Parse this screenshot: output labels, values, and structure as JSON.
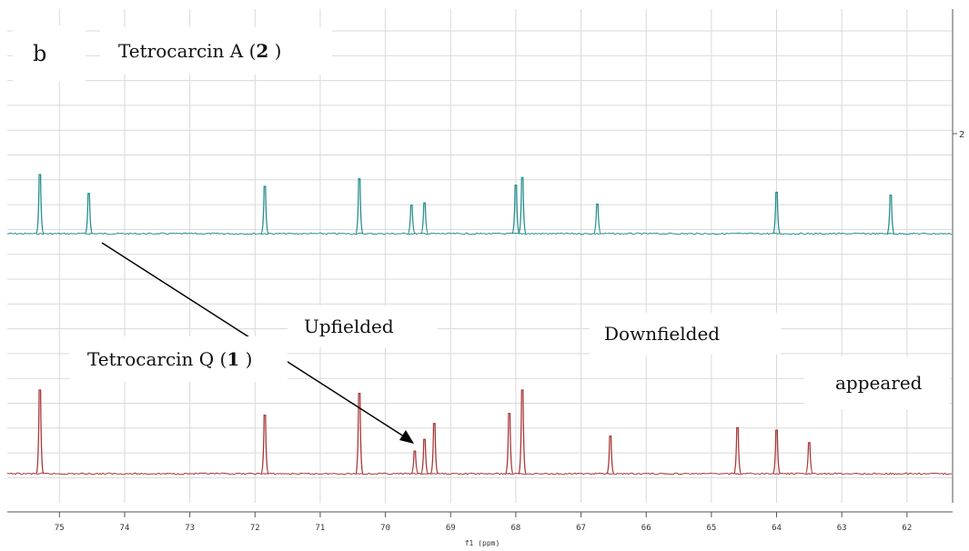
{
  "panel_label": "b",
  "labels": {
    "top_prefix": "Tetrocarcin A (",
    "top_bold": "2",
    "top_suffix": " )",
    "bottom_prefix": "Tetrocarcin Q (",
    "bottom_bold": "1",
    "bottom_suffix": " )",
    "upfielded": "Upfielded",
    "downfielded": "Downfielded",
    "appeared": "appeared"
  },
  "chart_data": {
    "type": "line",
    "xlabel": "f1 (ppm)",
    "ylabel": "",
    "xlim": [
      75.8,
      61.3
    ],
    "x_ticks": [
      "75",
      "74",
      "73",
      "72",
      "71",
      "70",
      "69",
      "68",
      "67",
      "66",
      "65",
      "64",
      "63",
      "62"
    ],
    "right_axis_tick": "2",
    "grid": true,
    "colors": {
      "top": "#2a8f8f",
      "bottom": "#a83a3a",
      "arrow": "#000000",
      "grid": "#d9d9d9"
    },
    "series": [
      {
        "peaks": [
          {
            "ppm": 75.3,
            "height": 1.0
          },
          {
            "ppm": 74.55,
            "height": 0.68
          },
          {
            "ppm": 71.85,
            "height": 0.8
          },
          {
            "ppm": 70.4,
            "height": 0.93
          },
          {
            "ppm": 69.6,
            "height": 0.48
          },
          {
            "ppm": 69.4,
            "height": 0.52
          },
          {
            "ppm": 68.0,
            "height": 0.82
          },
          {
            "ppm": 67.9,
            "height": 0.95
          },
          {
            "ppm": 66.75,
            "height": 0.5
          },
          {
            "ppm": 64.0,
            "height": 0.7
          },
          {
            "ppm": 62.25,
            "height": 0.65
          }
        ]
      },
      {
        "peaks": [
          {
            "ppm": 75.3,
            "height": 1.0
          },
          {
            "ppm": 71.85,
            "height": 0.7
          },
          {
            "ppm": 70.4,
            "height": 0.96
          },
          {
            "ppm": 69.55,
            "height": 0.27
          },
          {
            "ppm": 69.4,
            "height": 0.41
          },
          {
            "ppm": 69.25,
            "height": 0.6
          },
          {
            "ppm": 68.1,
            "height": 0.72
          },
          {
            "ppm": 67.9,
            "height": 1.0
          },
          {
            "ppm": 66.55,
            "height": 0.45
          },
          {
            "ppm": 64.6,
            "height": 0.55
          },
          {
            "ppm": 64.0,
            "height": 0.52
          },
          {
            "ppm": 63.5,
            "height": 0.37
          }
        ]
      }
    ]
  }
}
